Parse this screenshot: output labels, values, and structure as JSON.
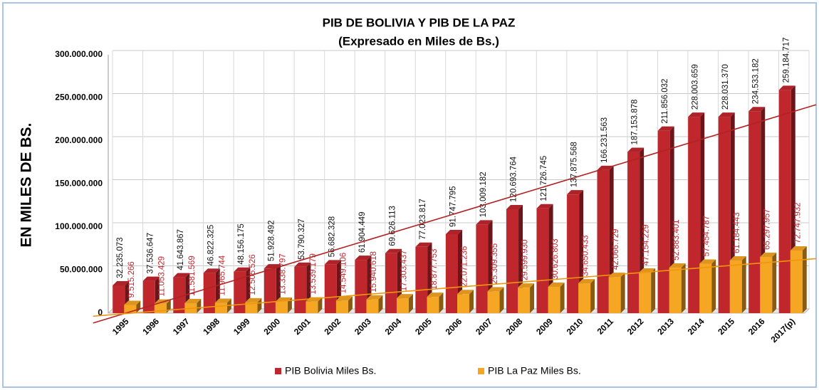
{
  "chart_data": {
    "type": "bar3d",
    "title": "PIB DE BOLIVIA Y PIB DE LA PAZ",
    "subtitle": "(Expresado en Miles de Bs.)",
    "y_label": "EN MILES DE BS.",
    "categories": [
      "1995",
      "1996",
      "1997",
      "1998",
      "1999",
      "2000",
      "2001",
      "2002",
      "2003",
      "2004",
      "2005",
      "2006",
      "2007",
      "2008",
      "2009",
      "2010",
      "2011",
      "2012",
      "2013",
      "2014",
      "2015",
      "2016",
      "2017(p)"
    ],
    "series": [
      {
        "name": "PIB Bolivia Miles Bs.",
        "color": "#c0272d",
        "label_color": "#111111",
        "values": [
          32235073,
          37536647,
          41643867,
          46822325,
          48156175,
          51928492,
          53790327,
          56682328,
          61904449,
          69626113,
          77023817,
          91747795,
          103009182,
          120693764,
          121726745,
          137875568,
          166231563,
          187153878,
          211856032,
          228003659,
          228031370,
          234533182,
          259184717
        ],
        "value_labels": [
          "32.235.073",
          "37.536.647",
          "41.643.867",
          "46.822.325",
          "48.156.175",
          "51.928.492",
          "53.790.327",
          "56.682.328",
          "61.904.449",
          "69.626.113",
          "77.023.817",
          "91.747.795",
          "103.009.182",
          "120.693.764",
          "121.726.745",
          "137.875.568",
          "166.231.563",
          "187.153.878",
          "211.856.032",
          "228.003.659",
          "228.031.370",
          "234.533.182",
          "259.184.717"
        ],
        "trendline_color": "#b22222"
      },
      {
        "name": "PIB La Paz Miles Bs.",
        "color": "#f5a623",
        "label_color": "#c0272d",
        "values": [
          9515266,
          11053429,
          11581569,
          11965744,
          12505526,
          13338797,
          13539179,
          14549106,
          15940618,
          17303437,
          18877753,
          22071236,
          25309355,
          29599930,
          30626803,
          34650433,
          42066729,
          47154229,
          52883401,
          57454787,
          61184443,
          65297957,
          72747932
        ],
        "value_labels": [
          "9.515.266",
          "11.053.429",
          "11.581.569",
          "11.965.744",
          "12.505.526",
          "13.338.797",
          "13.539.179",
          "14.549.106",
          "15.940.618",
          "17.303.437",
          "18.877.753",
          "22.071.236",
          "25.309.355",
          "29.599.930",
          "30.626.803",
          "34.650.433",
          "42.066.729",
          "47.154.229",
          "52.883.401",
          "57.454.787",
          "61.184.443",
          "65.297.957",
          "72.747.932"
        ],
        "trendline_color": "#f0960e"
      }
    ],
    "ylim": [
      0,
      300000000
    ],
    "yticks": [
      0,
      {
        "value": 50000000,
        "label": "50.000.000"
      },
      {
        "value": 100000000,
        "label": "100.000.000"
      },
      {
        "value": 150000000,
        "label": "150.000.000"
      },
      {
        "value": 200000000,
        "label": "200.000.000"
      },
      {
        "value": 250000000,
        "label": "250.000.000"
      },
      {
        "value": 300000000,
        "label": "300.000.000"
      }
    ],
    "grid": true,
    "trendline": true,
    "legend": "bottom"
  }
}
